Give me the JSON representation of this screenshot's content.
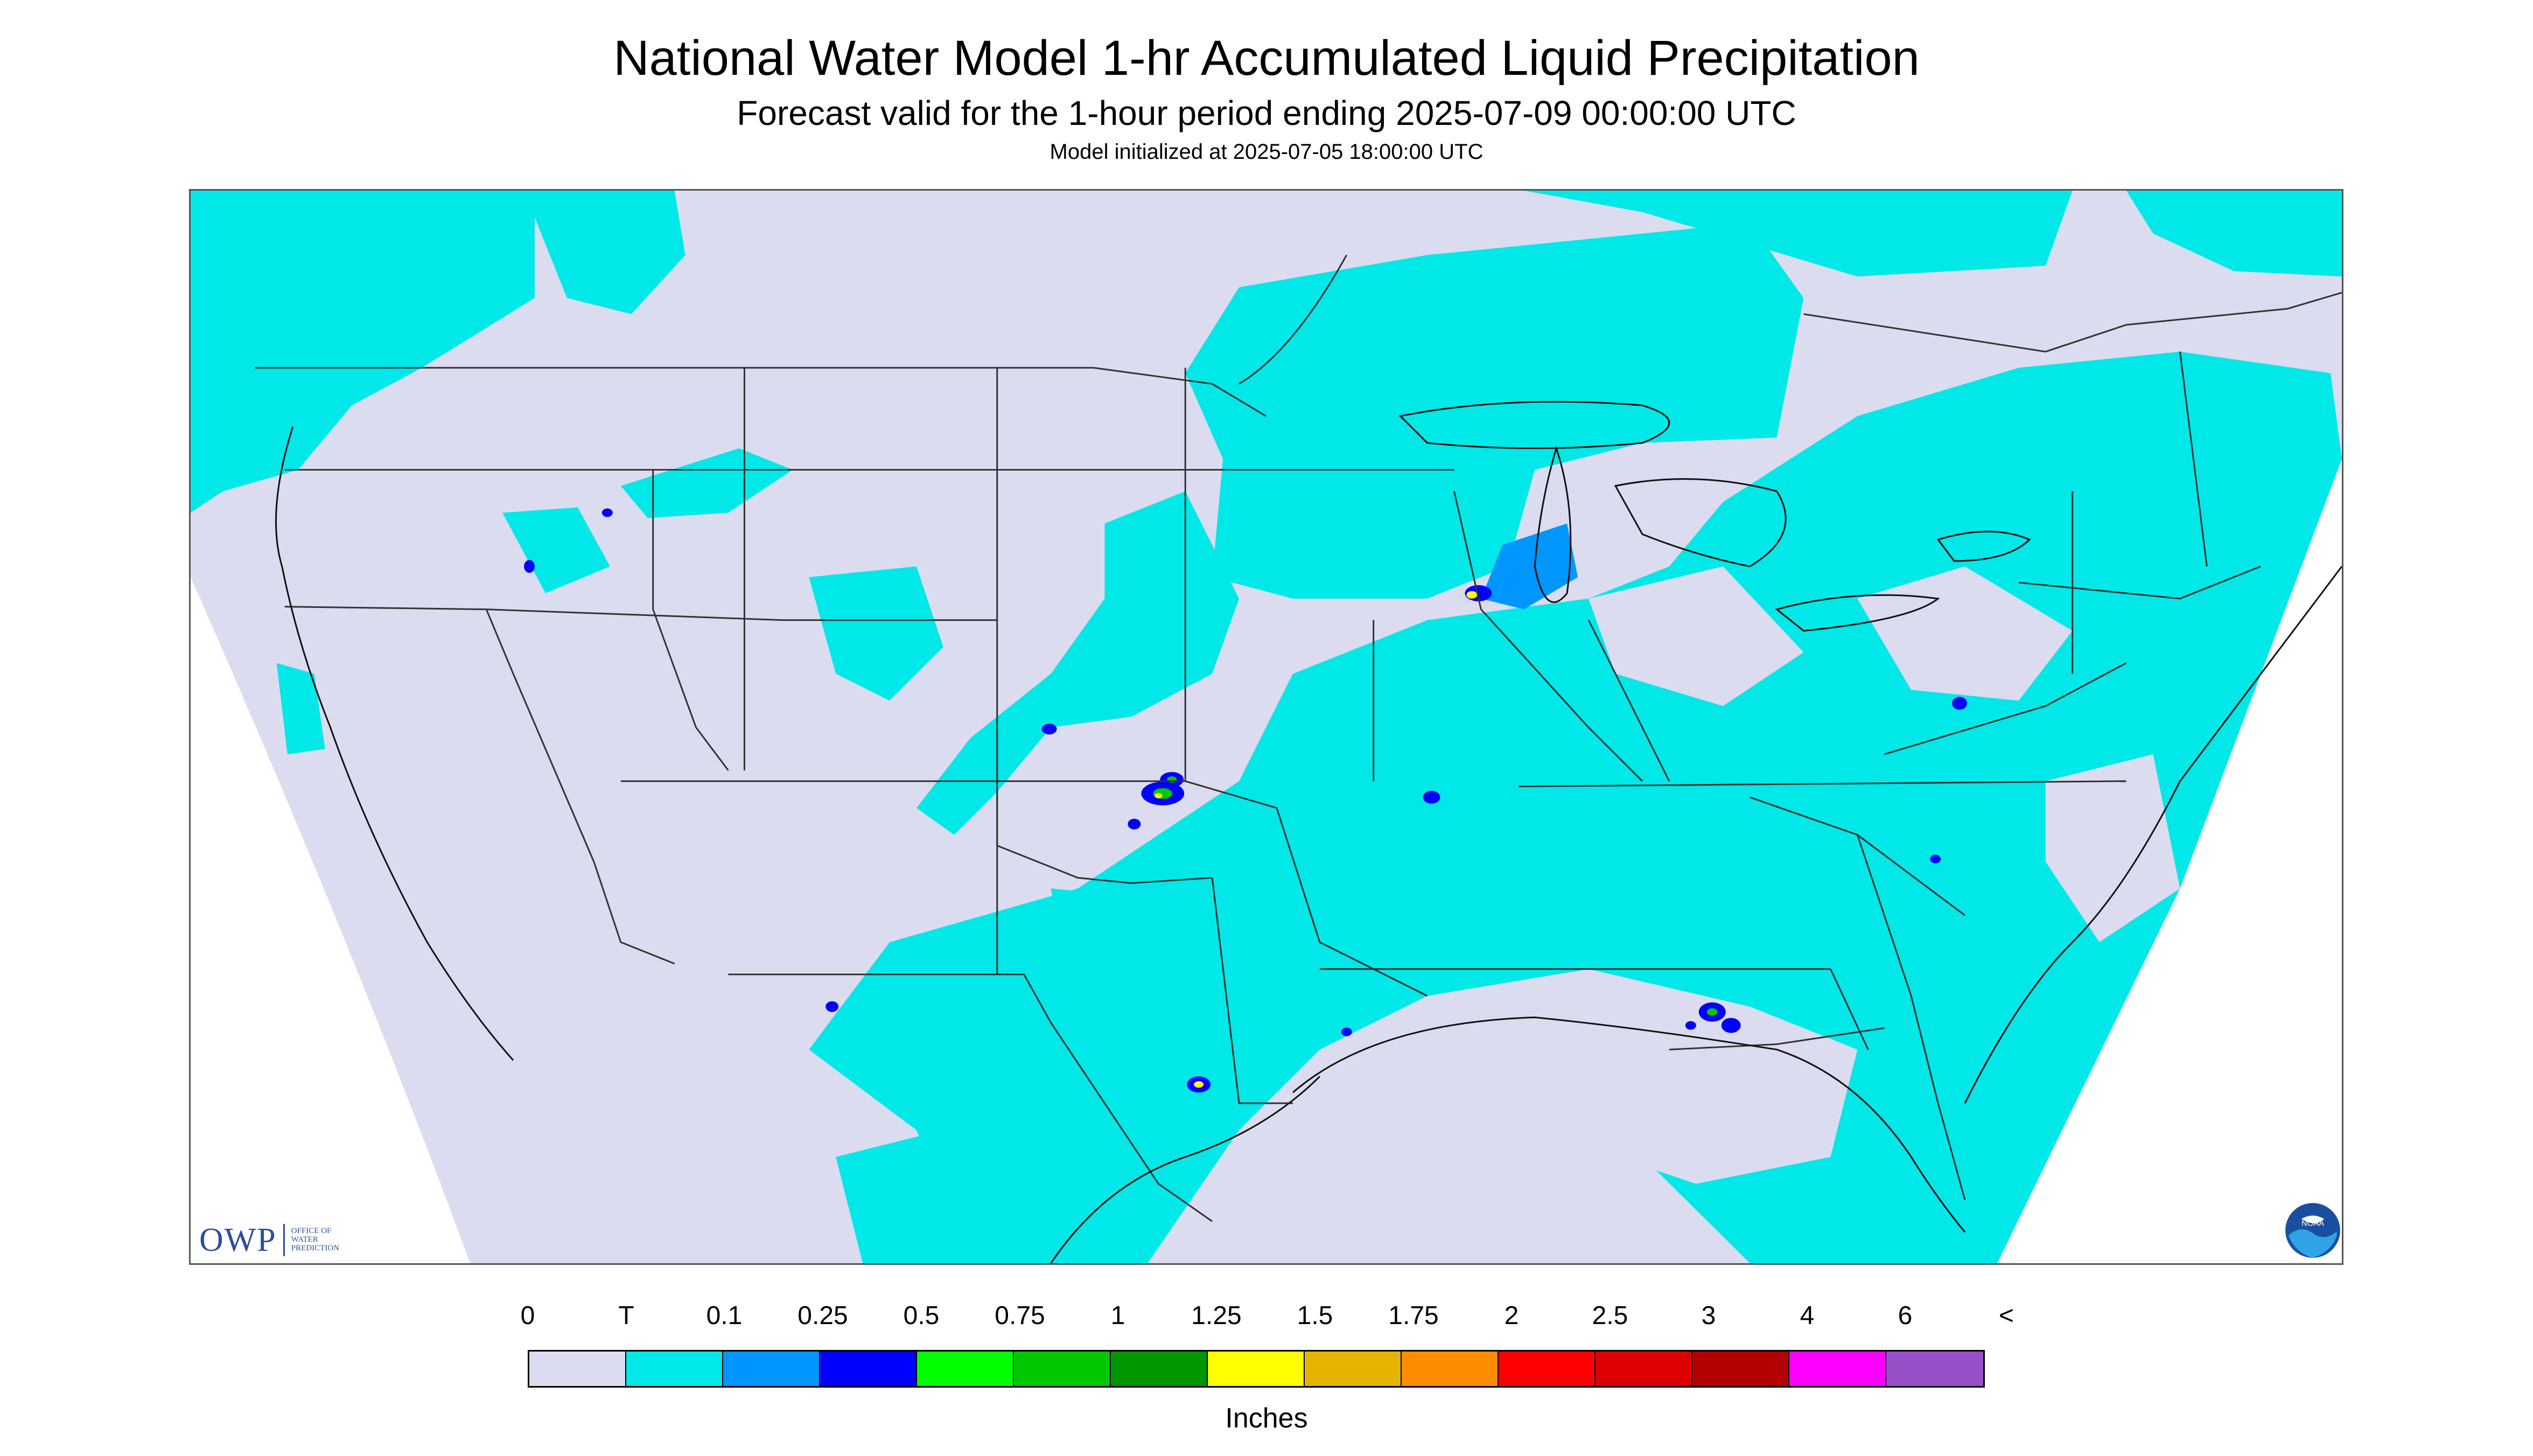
{
  "title": "National Water Model 1-hr Accumulated Liquid Precipitation",
  "subtitle": "Forecast valid for the 1-hour period ending 2025-07-09 00:00:00 UTC",
  "initialized": "Model initialized at 2025-07-05 18:00:00 UTC",
  "colors": {
    "no_data": "#ffffff",
    "background_domain": "#dcdcf0",
    "boundary_lines": "#333333"
  },
  "logos": {
    "owp": {
      "text": "OWP",
      "subtext": [
        "OFFICE OF",
        "WATER",
        "PREDICTION"
      ],
      "icon": "owp-logo"
    },
    "noaa": {
      "text": "NOAA",
      "icon": "noaa-logo"
    }
  },
  "legend": {
    "units": "Inches",
    "labels": [
      "0",
      "T",
      "0.1",
      "0.25",
      "0.5",
      "0.75",
      "1",
      "1.25",
      "1.5",
      "1.75",
      "2",
      "2.5",
      "3",
      "4",
      "6",
      "<"
    ],
    "colors": [
      "#dcdcf0",
      "#00e8e8",
      "#0096ff",
      "#0000ff",
      "#00ff00",
      "#00c800",
      "#009600",
      "#ffff00",
      "#e6b400",
      "#ff8c00",
      "#ff0000",
      "#dc0000",
      "#b40000",
      "#ff00ff",
      "#9650c8"
    ]
  }
}
